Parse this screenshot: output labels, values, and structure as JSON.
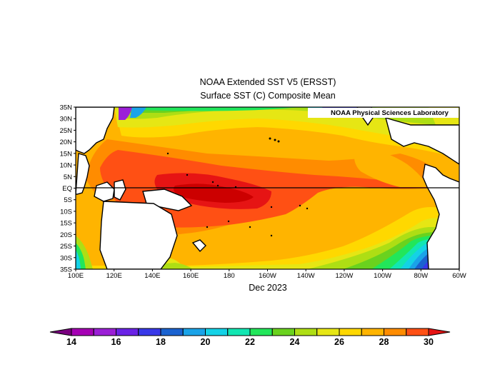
{
  "header": {
    "title": "NOAA Extended SST V5 (ERSST)",
    "subtitle": "Surface SST (C) Composite Mean"
  },
  "map": {
    "credit": "NOAA Physical Sciences Laboratory",
    "date_label": "Dec 2023",
    "lat_labels": [
      "35N",
      "30N",
      "25N",
      "20N",
      "15N",
      "10N",
      "5N",
      "EQ",
      "5S",
      "10S",
      "15S",
      "20S",
      "25S",
      "30S",
      "35S"
    ],
    "lon_labels": [
      "100E",
      "120E",
      "140E",
      "160E",
      "180",
      "160W",
      "140W",
      "120W",
      "100W",
      "80W",
      "60W"
    ],
    "lat_range": [
      -35,
      35
    ],
    "lon_range": [
      100,
      300
    ],
    "equator_line": true,
    "land_color": "#ffffff",
    "coastline_color": "#000000"
  },
  "colorbar": {
    "label_values": [
      "14",
      "16",
      "18",
      "20",
      "22",
      "24",
      "26",
      "28",
      "30"
    ],
    "colors": [
      "#7a0080",
      "#a500b4",
      "#9b1fd6",
      "#6a22e6",
      "#3838e8",
      "#1a62d0",
      "#1aa3e8",
      "#14d2e6",
      "#12e6b2",
      "#22e65a",
      "#6ad21e",
      "#aede14",
      "#e6e614",
      "#ffd800",
      "#ffb400",
      "#ff8c00",
      "#ff5014",
      "#e61414"
    ]
  }
}
